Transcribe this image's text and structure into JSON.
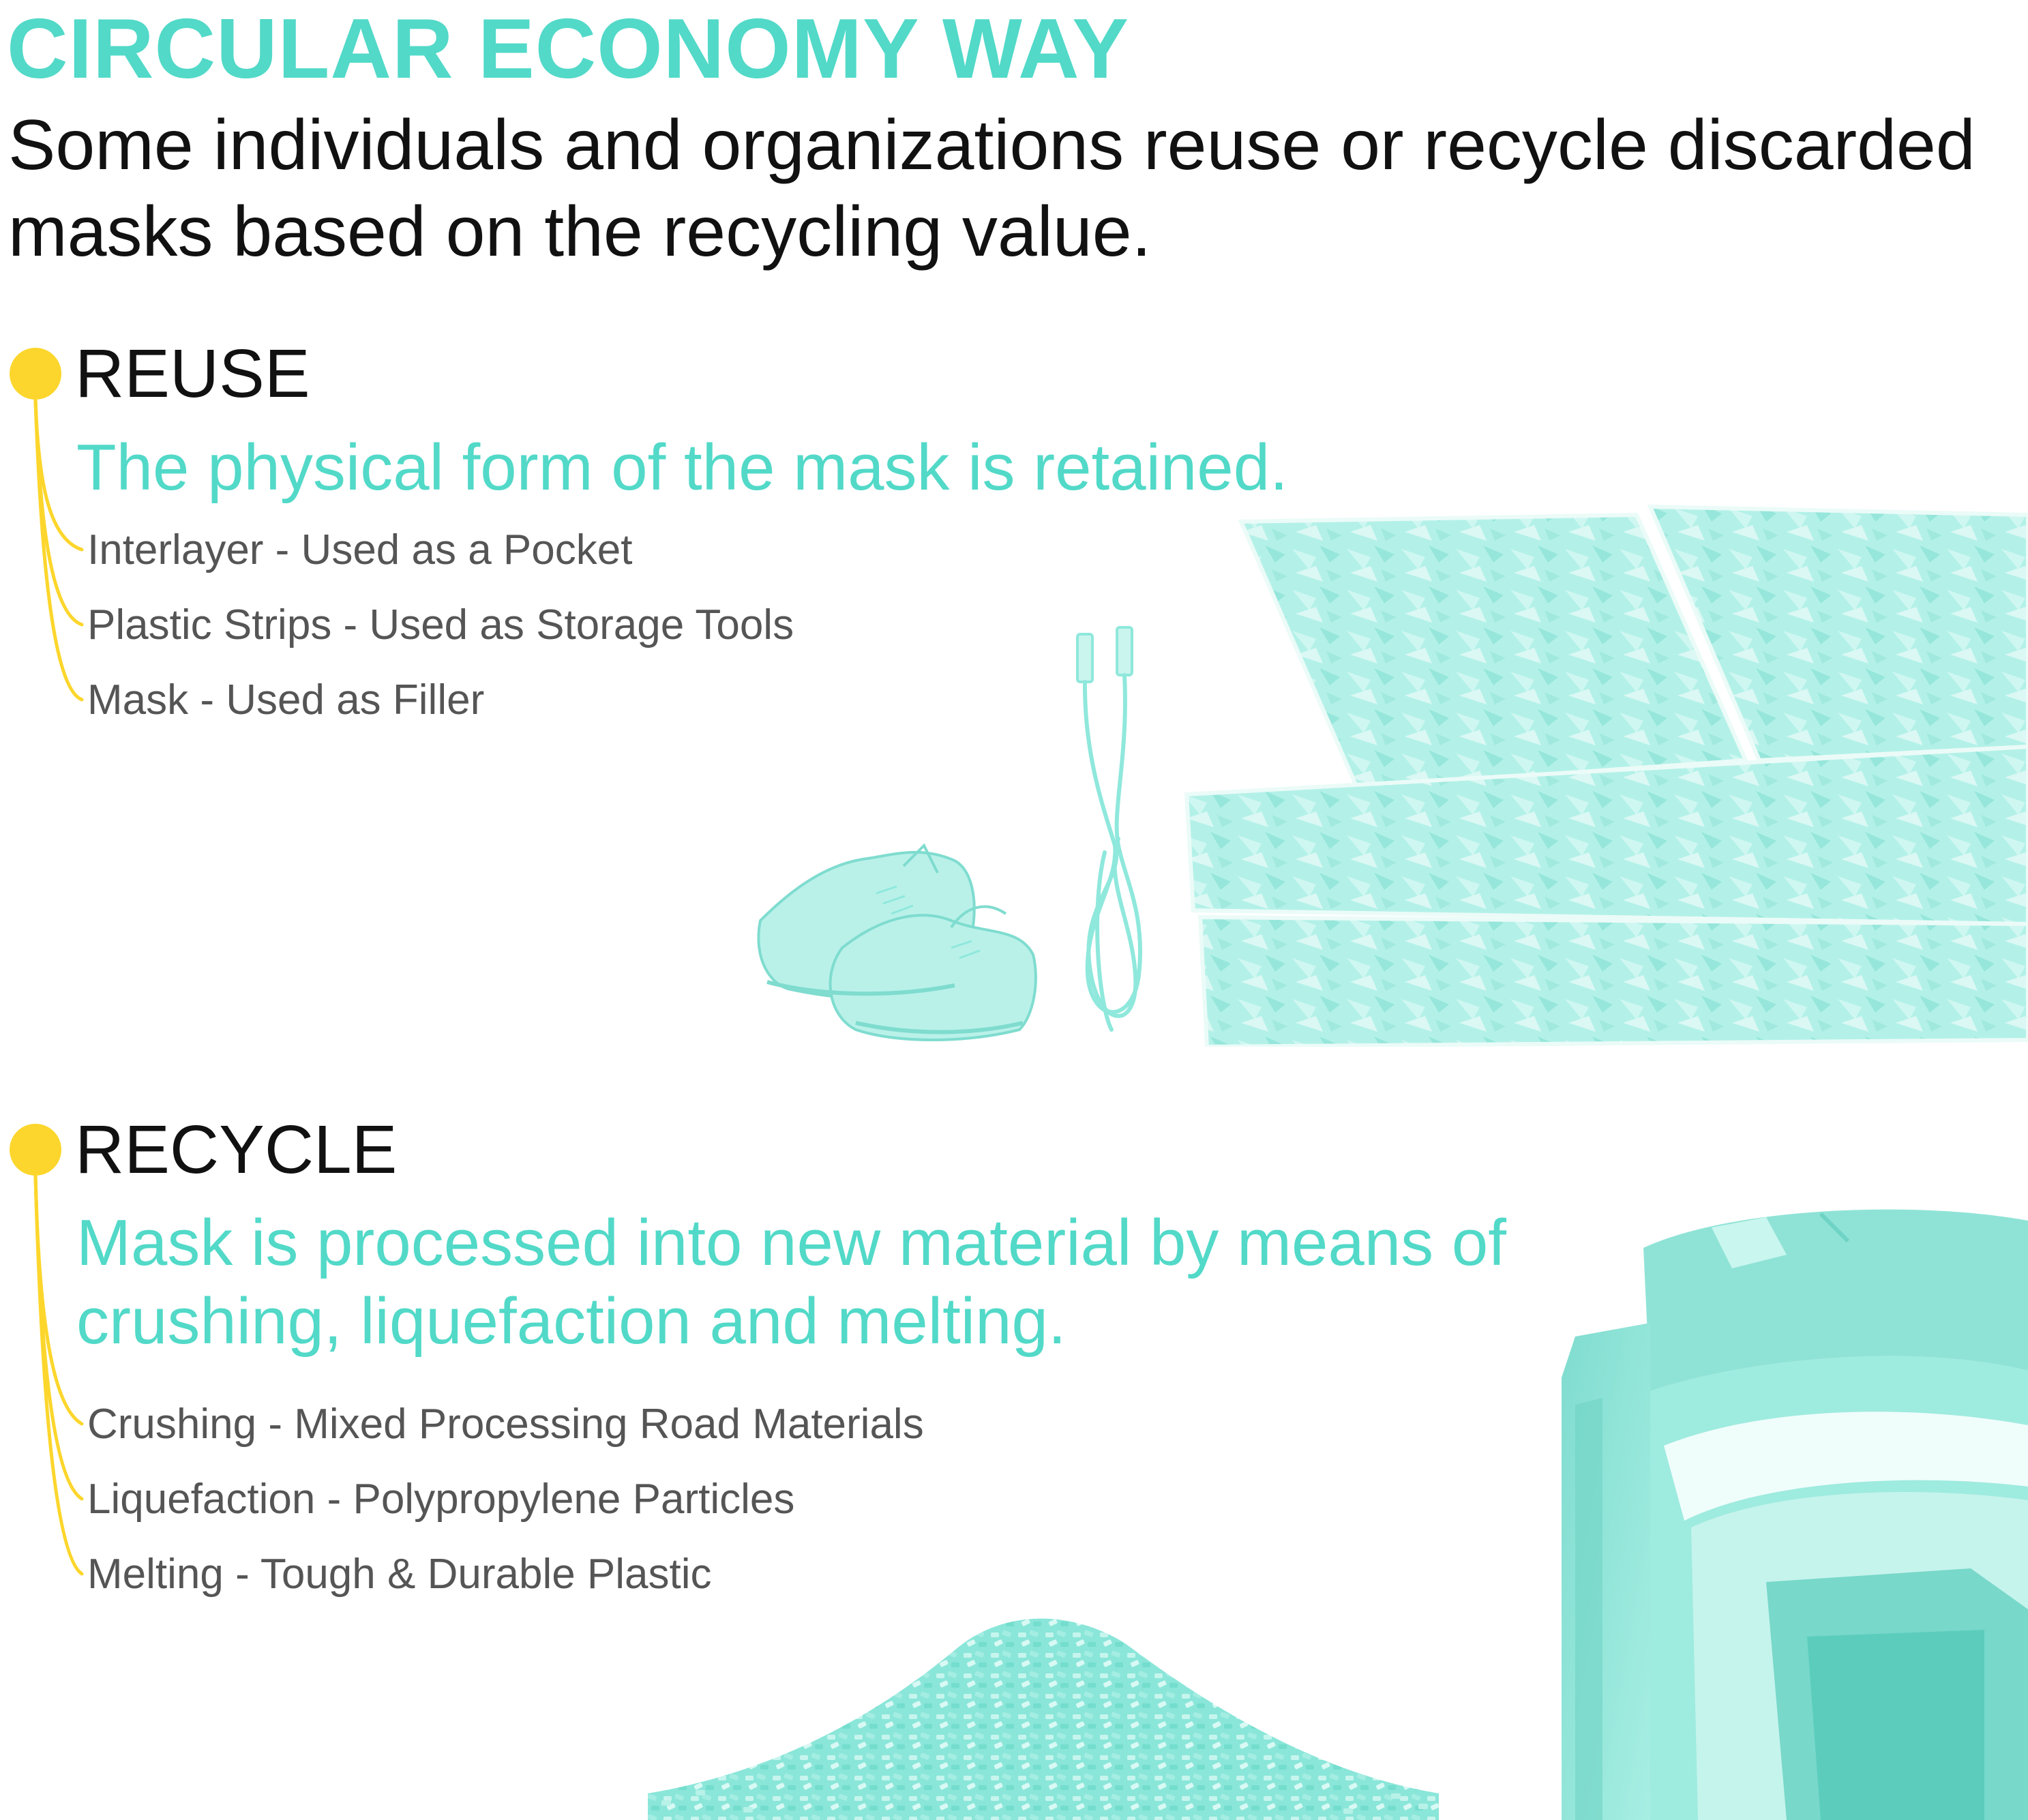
{
  "page": {
    "title": "CIRCULAR ECONOMY WAY",
    "intro": "Some individuals and organizations reuse or recycle discarded masks based on the recycling value."
  },
  "colors": {
    "accent": "#52d9c8",
    "bullet": "#fcd62c",
    "heading": "#111111",
    "item_text": "#555555",
    "illustration": "#8fe8dc"
  },
  "sections": [
    {
      "heading": "REUSE",
      "subtitle": "The physical form of the mask is retained.",
      "items": [
        "Interlayer - Used as a Pocket",
        "Plastic Strips - Used as Storage Tools",
        "Mask - Used as Filler"
      ],
      "illustrations": [
        "sneakers-image",
        "cable-image",
        "sofa-image"
      ]
    },
    {
      "heading": "RECYCLE",
      "subtitle": "Mask is processed into new material by means of crushing, liquefaction and melting.",
      "items": [
        "Crushing - Mixed Processing Road Materials",
        "Liquefaction - Polypropylene Particles",
        "Melting - Tough & Durable Plastic"
      ],
      "illustrations": [
        "pellet-pile-image",
        "plastic-block-image"
      ]
    }
  ]
}
